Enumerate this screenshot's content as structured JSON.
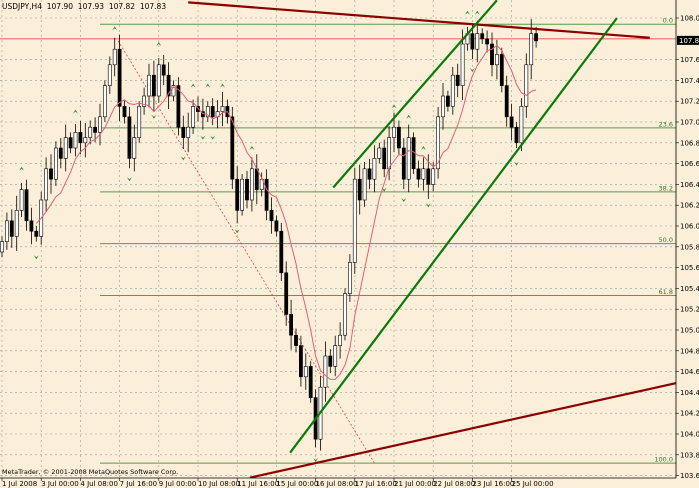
{
  "header": {
    "symbol": "USDJPY,H4",
    "open": "107.90",
    "high": "107.93",
    "low": "107.82",
    "close": "107.83"
  },
  "copyright": "MetaTrader, © 2001-2008 MetaQuotes Software Corp.",
  "chart_data": {
    "type": "candlestick",
    "grid": true,
    "colors": {
      "background": "#fbefd9",
      "bull_body": "#ffffff",
      "bear_body": "#000000",
      "ma": "#e0607a",
      "fibo": "#5a9a4a",
      "channel": "#0a7a0a",
      "trendline": "#8b0000",
      "bid_line": "#e03030",
      "fractal": "#2a8a2a"
    },
    "ylim": [
      103.6,
      108.25
    ],
    "y_ticks": [
      "108.05",
      "107.65",
      "107.45",
      "107.25",
      "107.05",
      "106.85",
      "106.65",
      "106.45",
      "106.25",
      "106.05",
      "105.85",
      "105.65",
      "105.45",
      "105.25",
      "105.05",
      "104.85",
      "104.65",
      "104.45",
      "104.25",
      "104.05",
      "103.85",
      "103.65"
    ],
    "x_ticks": [
      {
        "bar": 0,
        "label": "1 Jul 2008"
      },
      {
        "bar": 8,
        "label": "3 Jul 00:00"
      },
      {
        "bar": 16,
        "label": "4 Jul 08:00"
      },
      {
        "bar": 24,
        "label": "7 Jul 16:00"
      },
      {
        "bar": 32,
        "label": "9 Jul 00:00"
      },
      {
        "bar": 40,
        "label": "10 Jul 08:00"
      },
      {
        "bar": 48,
        "label": "11 Jul 16:00"
      },
      {
        "bar": 56,
        "label": "15 Jul 00:00"
      },
      {
        "bar": 64,
        "label": "16 Jul 08:00"
      },
      {
        "bar": 72,
        "label": "17 Jul 16:00"
      },
      {
        "bar": 80,
        "label": "21 Jul 00:00"
      },
      {
        "bar": 88,
        "label": "22 Jul 08:00"
      },
      {
        "bar": 96,
        "label": "23 Jul 16:00"
      },
      {
        "bar": 104,
        "label": "25 Jul 00:00"
      }
    ],
    "current_price": "107.83",
    "closes": [
      105.9,
      106.1,
      105.95,
      106.2,
      106.4,
      106.1,
      106.0,
      105.95,
      106.3,
      106.6,
      106.5,
      106.8,
      106.7,
      106.9,
      106.8,
      106.95,
      106.85,
      106.9,
      107.0,
      106.95,
      107.1,
      107.4,
      107.6,
      107.75,
      107.2,
      107.1,
      106.7,
      106.9,
      107.2,
      107.3,
      107.5,
      107.3,
      107.6,
      107.5,
      107.3,
      107.4,
      107.0,
      106.9,
      107.0,
      107.2,
      107.15,
      107.1,
      107.2,
      107.1,
      107.15,
      107.2,
      107.1,
      106.5,
      106.2,
      106.5,
      106.3,
      106.6,
      106.4,
      106.5,
      106.2,
      106.1,
      106.0,
      105.6,
      105.2,
      105.0,
      104.9,
      104.6,
      104.7,
      104.4,
      104.0,
      104.5,
      104.8,
      104.7,
      104.9,
      105.0,
      105.4,
      105.7,
      106.5,
      106.3,
      106.6,
      106.5,
      106.7,
      106.8,
      106.6,
      106.9,
      107.0,
      106.8,
      106.5,
      106.9,
      106.6,
      106.5,
      106.6,
      106.45,
      106.6,
      107.1,
      107.3,
      107.2,
      107.5,
      107.4,
      107.8,
      107.9,
      107.75,
      107.9,
      107.85,
      107.8,
      107.6,
      107.7,
      107.4,
      107.1,
      107.0,
      106.85,
      107.2,
      107.6,
      107.9,
      107.83
    ],
    "fibonacci": {
      "high": 107.99,
      "low": 103.77,
      "levels": [
        {
          "label": "0.0",
          "ratio": 0
        },
        {
          "label": "23.6",
          "ratio": 0.236
        },
        {
          "label": "38.2",
          "ratio": 0.382
        },
        {
          "label": "50.0",
          "ratio": 0.5
        },
        {
          "label": "61.8",
          "ratio": 0.618
        },
        {
          "label": "100.0",
          "ratio": 1
        }
      ],
      "from": [
        23.7,
        107.83
      ],
      "to": [
        76,
        103.77
      ]
    },
    "trendlines": [
      {
        "kind": "resistance",
        "p1": [
          38,
          108.2
        ],
        "p2": [
          132.2,
          107.86
        ],
        "color": "#8b0000"
      },
      {
        "kind": "support",
        "p1": [
          50.6,
          103.63
        ],
        "p2": [
          137.6,
          104.54
        ],
        "color": "#8b0000"
      },
      {
        "kind": "channel-upper",
        "p1": [
          67.6,
          106.42
        ],
        "p2": [
          101,
          108.22
        ],
        "color": "#0a7a0a"
      },
      {
        "kind": "channel-lower",
        "p1": [
          58.8,
          103.87
        ],
        "p2": [
          125.5,
          108.05
        ],
        "color": "#0a7a0a"
      }
    ]
  }
}
